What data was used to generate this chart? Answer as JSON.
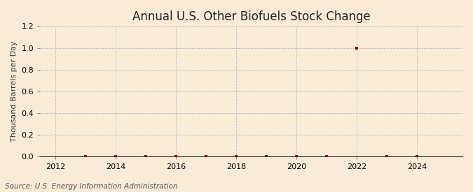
{
  "title": "Annual U.S. Other Biofuels Stock Change",
  "ylabel": "Thousand Barrels per Day",
  "source": "Source: U.S. Energy Information Administration",
  "bg_color": "#faebd7",
  "xlim": [
    2011.5,
    2025.5
  ],
  "ylim": [
    0.0,
    1.2
  ],
  "yticks": [
    0.0,
    0.2,
    0.4,
    0.6,
    0.8,
    1.0,
    1.2
  ],
  "xticks": [
    2012,
    2014,
    2016,
    2018,
    2020,
    2022,
    2024
  ],
  "data_x": [
    2013,
    2014,
    2015,
    2016,
    2017,
    2018,
    2019,
    2020,
    2021,
    2022,
    2023,
    2024
  ],
  "data_y": [
    0.0,
    0.0,
    0.0,
    0.0,
    0.0,
    0.0,
    0.0,
    0.0,
    0.0,
    1.0,
    0.0,
    0.0
  ],
  "marker_color": "#8b0000",
  "marker_size": 3.5,
  "grid_color": "#bbbbbb",
  "grid_style": "--",
  "title_fontsize": 12,
  "label_fontsize": 8,
  "tick_fontsize": 8,
  "source_fontsize": 7.5
}
